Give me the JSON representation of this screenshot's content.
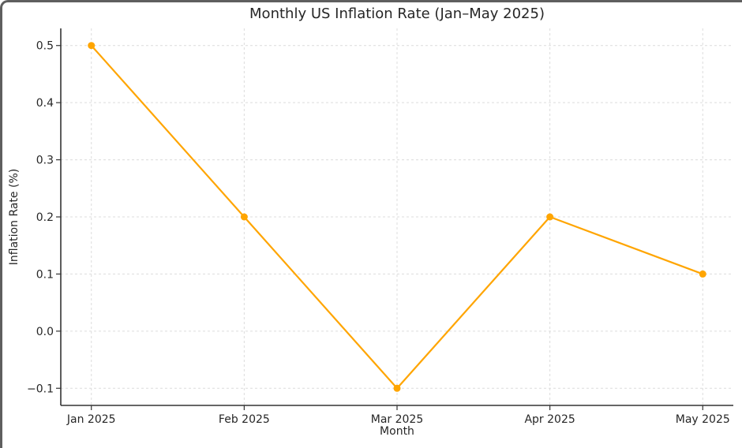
{
  "chart_data": {
    "type": "line",
    "title": "Monthly US Inflation Rate (Jan–May 2025)",
    "xlabel": "Month",
    "ylabel": "Inflation Rate (%)",
    "categories": [
      "Jan 2025",
      "Feb 2025",
      "Mar 2025",
      "Apr 2025",
      "May 2025"
    ],
    "values": [
      0.5,
      0.2,
      -0.1,
      0.2,
      0.1
    ],
    "ytick_values": [
      -0.1,
      0.0,
      0.1,
      0.2,
      0.3,
      0.4,
      0.5
    ],
    "ytick_labels": [
      "−0.1",
      "0.0",
      "0.1",
      "0.2",
      "0.3",
      "0.4",
      "0.5"
    ],
    "ylim": [
      -0.13,
      0.53
    ],
    "grid": true,
    "grid_style": "dashed",
    "legend": "none",
    "colors": {
      "line": "#FFA500",
      "marker": "#FFA500",
      "grid": "#dcdcdc",
      "spine": "#333333",
      "text": "#262626",
      "background": "#ffffff",
      "frame_border": "#5f5f5f"
    }
  }
}
